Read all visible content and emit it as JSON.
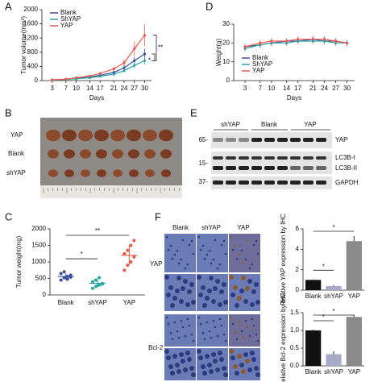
{
  "panel_labels": [
    "A",
    "D",
    "B",
    "E",
    "C",
    "F"
  ],
  "chart_data": [
    {
      "type": "line",
      "x_label": "Days",
      "y_label": "Tumor volume(mm³)",
      "x": [
        3,
        7,
        10,
        14,
        17,
        21,
        24,
        27,
        30
      ],
      "xlim": [
        0,
        32
      ],
      "xticks": [
        3,
        7,
        10,
        14,
        17,
        21,
        24,
        27,
        30
      ],
      "ylim": [
        0,
        2000
      ],
      "yticks": [
        0,
        400,
        800,
        1200,
        1600,
        2000
      ],
      "legend": "upper-left",
      "annotations": [
        "**",
        "*"
      ],
      "series": [
        {
          "name": "Blank",
          "color": "#3b4fa0",
          "values": [
            20,
            35,
            60,
            100,
            150,
            230,
            360,
            560,
            750
          ],
          "errors": [
            5,
            8,
            12,
            20,
            30,
            45,
            70,
            110,
            150
          ]
        },
        {
          "name": "ShYAP",
          "color": "#2aa6a0",
          "values": [
            15,
            30,
            50,
            80,
            120,
            180,
            280,
            430,
            560
          ],
          "errors": [
            4,
            6,
            10,
            15,
            25,
            35,
            55,
            80,
            110
          ]
        },
        {
          "name": "YAP",
          "color": "#e8584c",
          "values": [
            20,
            40,
            80,
            130,
            200,
            330,
            500,
            900,
            1280
          ],
          "errors": [
            5,
            10,
            15,
            25,
            40,
            60,
            100,
            200,
            300
          ]
        }
      ]
    },
    {
      "type": "line",
      "x_label": "Days",
      "y_label": "Weight(g)",
      "x": [
        3,
        7,
        10,
        14,
        17,
        21,
        24,
        27,
        30
      ],
      "xlim": [
        0,
        32
      ],
      "xticks": [
        3,
        7,
        10,
        14,
        17,
        21,
        24,
        27,
        30
      ],
      "ylim": [
        0,
        30
      ],
      "yticks": [
        0,
        10,
        20,
        30
      ],
      "legend": "lower-left",
      "annotations": [],
      "series": [
        {
          "name": "Blank",
          "color": "#3b4fa0",
          "values": [
            18,
            19,
            20,
            21,
            21,
            22,
            21,
            21,
            20
          ],
          "errors": [
            1.5,
            1.5,
            1.5,
            1.5,
            1.5,
            1.5,
            1.5,
            1.5,
            1.5
          ]
        },
        {
          "name": "ShYAP",
          "color": "#2aa6a0",
          "values": [
            17,
            19,
            20,
            20,
            21,
            21,
            21,
            20,
            20
          ],
          "errors": [
            1.5,
            1.5,
            1.5,
            1.5,
            1.5,
            1.5,
            1.5,
            1.5,
            1.5
          ]
        },
        {
          "name": "YAP",
          "color": "#e8584c",
          "values": [
            18,
            20,
            21,
            21,
            22,
            22,
            22,
            21,
            20
          ],
          "errors": [
            1.5,
            1.5,
            1.5,
            1.5,
            1.5,
            1.5,
            1.5,
            1.5,
            1.5
          ]
        }
      ]
    },
    {
      "type": "dot",
      "y_label": "Tumor weight(mg)",
      "categories": [
        "Blank",
        "shYAP",
        "YAP"
      ],
      "colors": [
        "#3b4fa0",
        "#2aa6a0",
        "#e8584c"
      ],
      "ylim": [
        0,
        2000
      ],
      "yticks": [
        0,
        500,
        1000,
        1500,
        2000
      ],
      "annotations": [
        "**",
        "*"
      ],
      "points": [
        [
          450,
          520,
          560,
          600,
          650,
          700,
          480,
          540
        ],
        [
          200,
          260,
          300,
          350,
          400,
          450,
          520,
          330
        ],
        [
          750,
          900,
          1000,
          1150,
          1250,
          1350,
          1500,
          1650
        ]
      ],
      "means": [
        560,
        350,
        1200
      ],
      "sd": [
        90,
        110,
        300
      ]
    },
    {
      "type": "bar",
      "y_label": "Relative YAP expression by IHC",
      "categories": [
        "Blank",
        "shYAP",
        "YAP"
      ],
      "colors": [
        "#111111",
        "#a9a9c9",
        "#8a8a8a"
      ],
      "values": [
        1,
        0.4,
        4.8
      ],
      "errors": [
        0.05,
        0.1,
        0.5
      ],
      "ylim": [
        0,
        6
      ],
      "yticks": [
        0,
        2,
        4,
        6
      ],
      "annotations": [
        "*",
        "*"
      ]
    },
    {
      "type": "bar",
      "y_label": "Relative Bcl-2 expression by IHC",
      "categories": [
        "Blank",
        "shYAP",
        "YAP"
      ],
      "colors": [
        "#111111",
        "#a9a9c9",
        "#8a8a8a"
      ],
      "values": [
        1.0,
        0.33,
        1.38
      ],
      "errors": [
        0.02,
        0.08,
        0.06
      ],
      "ylim": [
        0,
        1.5
      ],
      "yticks": [
        {
          "value": 0,
          "label": "0.0"
        },
        {
          "value": 0.5,
          "label": "0.5"
        },
        {
          "value": 1,
          "label": "1.0"
        },
        {
          "value": 1.5,
          "label": "1.5"
        }
      ],
      "annotations": [
        "*",
        "*"
      ]
    }
  ],
  "photo": {
    "rows": [
      "YAP",
      "Blank",
      "shYAP"
    ]
  },
  "blot": {
    "groups": [
      "shYAP",
      "Blank",
      "YAP"
    ],
    "markers": [
      "65-",
      "15-",
      "37-"
    ],
    "bands": [
      "YAP",
      "LC3B-I",
      "LC3B-II",
      "GAPDH"
    ]
  },
  "ihc": {
    "columns": [
      "Blank",
      "shYAP",
      "YAP"
    ],
    "rows": [
      "YAP",
      "Bcl-2"
    ]
  }
}
